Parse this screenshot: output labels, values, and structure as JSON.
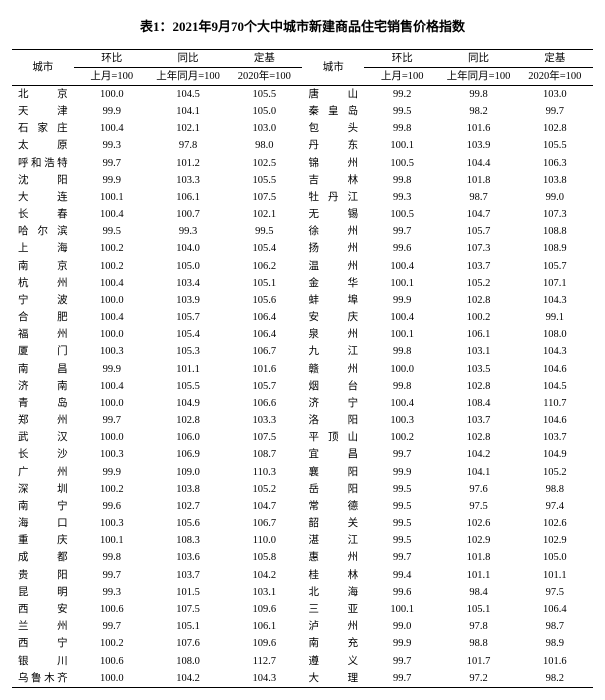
{
  "title": "表1：2021年9月70个大中城市新建商品住宅销售价格指数",
  "hdr": {
    "city": "城市",
    "mom": "环比",
    "mom_sub": "上月=100",
    "yoy": "同比",
    "yoy_sub": "上年同月=100",
    "base": "定基",
    "base_sub": "2020年=100"
  },
  "rowsL": [
    [
      "北　　京",
      "100.0",
      "104.5",
      "105.5"
    ],
    [
      "天　　津",
      "99.9",
      "104.1",
      "105.0"
    ],
    [
      "石 家 庄",
      "100.4",
      "102.1",
      "103.0"
    ],
    [
      "太　　原",
      "99.3",
      "97.8",
      "98.0"
    ],
    [
      "呼和浩特",
      "99.7",
      "101.2",
      "102.5"
    ],
    [
      "沈　　阳",
      "99.9",
      "103.3",
      "105.5"
    ],
    [
      "大　　连",
      "100.1",
      "106.1",
      "107.5"
    ],
    [
      "长　　春",
      "100.4",
      "100.7",
      "102.1"
    ],
    [
      "哈 尔 滨",
      "99.5",
      "99.3",
      "99.5"
    ],
    [
      "上　　海",
      "100.2",
      "104.0",
      "105.4"
    ],
    [
      "南　　京",
      "100.2",
      "105.0",
      "106.2"
    ],
    [
      "杭　　州",
      "100.4",
      "103.4",
      "105.1"
    ],
    [
      "宁　　波",
      "100.0",
      "103.9",
      "105.6"
    ],
    [
      "合　　肥",
      "100.4",
      "105.7",
      "106.4"
    ],
    [
      "福　　州",
      "100.0",
      "105.4",
      "106.4"
    ],
    [
      "厦　　门",
      "100.3",
      "105.3",
      "106.7"
    ],
    [
      "南　　昌",
      "99.9",
      "101.1",
      "101.6"
    ],
    [
      "济　　南",
      "100.4",
      "105.5",
      "105.7"
    ],
    [
      "青　　岛",
      "100.0",
      "104.9",
      "106.6"
    ],
    [
      "郑　　州",
      "99.7",
      "102.8",
      "103.3"
    ],
    [
      "武　　汉",
      "100.0",
      "106.0",
      "107.5"
    ],
    [
      "长　　沙",
      "100.3",
      "106.9",
      "108.7"
    ],
    [
      "广　　州",
      "99.9",
      "109.0",
      "110.3"
    ],
    [
      "深　　圳",
      "100.2",
      "103.8",
      "105.2"
    ],
    [
      "南　　宁",
      "99.6",
      "102.7",
      "104.7"
    ],
    [
      "海　　口",
      "100.3",
      "105.6",
      "106.7"
    ],
    [
      "重　　庆",
      "100.1",
      "108.3",
      "110.0"
    ],
    [
      "成　　都",
      "99.8",
      "103.6",
      "105.8"
    ],
    [
      "贵　　阳",
      "99.7",
      "103.7",
      "104.2"
    ],
    [
      "昆　　明",
      "99.3",
      "101.5",
      "103.1"
    ],
    [
      "西　　安",
      "100.6",
      "107.5",
      "109.6"
    ],
    [
      "兰　　州",
      "99.7",
      "105.1",
      "106.1"
    ],
    [
      "西　　宁",
      "100.2",
      "107.6",
      "109.6"
    ],
    [
      "银　　川",
      "100.6",
      "108.0",
      "112.7"
    ],
    [
      "乌鲁木齐",
      "100.0",
      "104.2",
      "104.3"
    ]
  ],
  "rowsR": [
    [
      "唐　　山",
      "99.2",
      "99.8",
      "103.0"
    ],
    [
      "秦 皇 岛",
      "99.5",
      "98.2",
      "99.7"
    ],
    [
      "包　　头",
      "99.8",
      "101.6",
      "102.8"
    ],
    [
      "丹　　东",
      "100.1",
      "103.9",
      "105.5"
    ],
    [
      "锦　　州",
      "100.5",
      "104.4",
      "106.3"
    ],
    [
      "吉　　林",
      "99.8",
      "101.8",
      "103.8"
    ],
    [
      "牡 丹 江",
      "99.3",
      "98.7",
      "99.0"
    ],
    [
      "无　　锡",
      "100.5",
      "104.7",
      "107.3"
    ],
    [
      "徐　　州",
      "99.7",
      "105.7",
      "108.8"
    ],
    [
      "扬　　州",
      "99.6",
      "107.3",
      "108.9"
    ],
    [
      "温　　州",
      "100.4",
      "103.7",
      "105.7"
    ],
    [
      "金　　华",
      "100.1",
      "105.2",
      "107.1"
    ],
    [
      "蚌　　埠",
      "99.9",
      "102.8",
      "104.3"
    ],
    [
      "安　　庆",
      "100.4",
      "100.2",
      "99.1"
    ],
    [
      "泉　　州",
      "100.1",
      "106.1",
      "108.0"
    ],
    [
      "九　　江",
      "99.8",
      "103.1",
      "104.3"
    ],
    [
      "赣　　州",
      "100.0",
      "103.5",
      "104.6"
    ],
    [
      "烟　　台",
      "99.8",
      "102.8",
      "104.5"
    ],
    [
      "济　　宁",
      "100.4",
      "108.4",
      "110.7"
    ],
    [
      "洛　　阳",
      "100.3",
      "103.7",
      "104.6"
    ],
    [
      "平 顶 山",
      "100.2",
      "102.8",
      "103.7"
    ],
    [
      "宜　　昌",
      "99.7",
      "104.2",
      "104.9"
    ],
    [
      "襄　　阳",
      "99.9",
      "104.1",
      "105.2"
    ],
    [
      "岳　　阳",
      "99.5",
      "97.6",
      "98.8"
    ],
    [
      "常　　德",
      "99.5",
      "97.5",
      "97.4"
    ],
    [
      "韶　　关",
      "99.5",
      "102.6",
      "102.6"
    ],
    [
      "湛　　江",
      "99.5",
      "102.9",
      "102.9"
    ],
    [
      "惠　　州",
      "99.7",
      "101.8",
      "105.0"
    ],
    [
      "桂　　林",
      "99.4",
      "101.1",
      "101.1"
    ],
    [
      "北　　海",
      "99.6",
      "98.4",
      "97.5"
    ],
    [
      "三　　亚",
      "100.1",
      "105.1",
      "106.4"
    ],
    [
      "泸　　州",
      "99.0",
      "97.8",
      "98.7"
    ],
    [
      "南　　充",
      "99.9",
      "98.8",
      "98.9"
    ],
    [
      "遵　　义",
      "99.7",
      "101.7",
      "101.6"
    ],
    [
      "大　　理",
      "99.7",
      "97.2",
      "98.2"
    ]
  ]
}
